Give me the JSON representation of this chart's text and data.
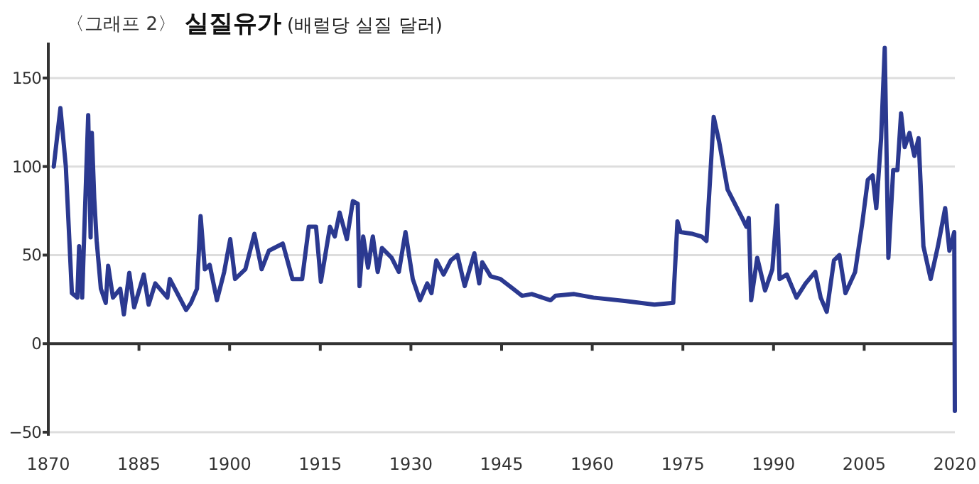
{
  "chart_data": {
    "type": "line",
    "title": "실질유가",
    "subtitle": "(배럴당 실질 달러)",
    "annotations": [
      "〈그래프 2〉"
    ],
    "xlim": [
      1870,
      2020
    ],
    "xticks": [
      1870,
      1885,
      1900,
      1915,
      1930,
      1945,
      1960,
      1975,
      1990,
      2005,
      2020
    ],
    "ylim": [
      -52,
      170
    ],
    "yticks": [
      -50,
      0,
      50,
      100,
      150
    ],
    "grid": "y",
    "series": [
      {
        "color": "#2b3990",
        "x": [
          1870.9,
          1872.0,
          1872.9,
          1873.9,
          1874.8,
          1875.1,
          1875.6,
          1876,
          1876.6,
          1877,
          1877.2,
          1877.6,
          1878,
          1878.7,
          1879.5,
          1879.9,
          1880.7,
          1881.9,
          1882.5,
          1883.4,
          1884.2,
          1885.8,
          1886.6,
          1887.7,
          1889.7,
          1890.1,
          1892.8,
          1893.6,
          1894.6,
          1895.2,
          1895.9,
          1896.7,
          1897.9,
          1899.1,
          1900.1,
          1900.9,
          1902.6,
          1904.1,
          1905.3,
          1906.5,
          1908.8,
          1910.4,
          1912,
          1913.1,
          1914.3,
          1915.1,
          1916.6,
          1917.4,
          1918.2,
          1919.4,
          1920.4,
          1921.2,
          1921.5,
          1922.1,
          1922.9,
          1923.7,
          1924.5,
          1925.2,
          1926.8,
          1928,
          1929.1,
          1930.3,
          1931.5,
          1932.7,
          1933.4,
          1934.2,
          1935.4,
          1936.6,
          1937.7,
          1938.9,
          1940.5,
          1941.3,
          1941.8,
          1943.2,
          1944.8,
          1946.9,
          1948.4,
          1950,
          1953.1,
          1953.9,
          1957,
          1960.2,
          1965.6,
          1970.3,
          1973.4,
          1974.1,
          1974.6,
          1976.6,
          1978.1,
          1978.9,
          1980.1,
          1981,
          1982.4,
          1983.6,
          1984.8,
          1985.5,
          1985.9,
          1986.3,
          1987.3,
          1988.6,
          1989.8,
          1990.6,
          1991,
          1992.2,
          1993.8,
          1995.3,
          1996.9,
          1997.8,
          1998.8,
          2000,
          2000.9,
          2001.9,
          2003.5,
          2004.7,
          2005.6,
          2006.4,
          2007,
          2007.8,
          2008.4,
          2009,
          2009.8,
          2010.5,
          2011.1,
          2011.7,
          2012.5,
          2013.3,
          2014,
          2014.8,
          2016,
          2017.2,
          2018.4,
          2019.1,
          2019.9,
          2020
        ],
        "values": [
          100,
          133,
          100,
          28.5,
          26,
          55,
          26,
          68,
          129,
          60,
          119,
          82,
          58,
          31,
          23,
          44,
          26,
          31,
          16.5,
          40,
          20.5,
          39,
          22,
          34,
          26,
          36.5,
          19,
          23,
          31,
          72,
          42,
          44.5,
          24.5,
          40.5,
          59,
          36.5,
          42,
          62,
          42,
          52.5,
          56.5,
          36.5,
          36.5,
          66,
          66,
          35,
          66,
          60.5,
          74,
          59,
          80.5,
          79,
          32.5,
          60.5,
          43,
          60.5,
          40.5,
          54,
          48.5,
          40.5,
          63,
          36.5,
          24.5,
          34,
          28.5,
          47,
          39,
          47,
          50,
          32.5,
          51,
          34,
          46,
          38,
          36.5,
          31,
          27,
          28,
          24.5,
          27,
          28,
          26,
          24,
          22,
          23,
          69,
          63,
          62,
          60.5,
          58,
          128,
          114,
          87,
          79,
          71,
          66,
          71,
          24.5,
          48.5,
          30,
          42,
          78,
          36.5,
          39,
          26,
          34,
          40.5,
          26,
          18,
          47,
          50,
          28.5,
          40.5,
          68.5,
          92.5,
          95,
          76.5,
          116,
          167,
          48.5,
          98,
          98,
          130,
          111,
          119,
          106,
          116,
          55,
          36.5,
          55,
          76.5,
          52.5,
          63,
          -38
        ]
      }
    ]
  }
}
